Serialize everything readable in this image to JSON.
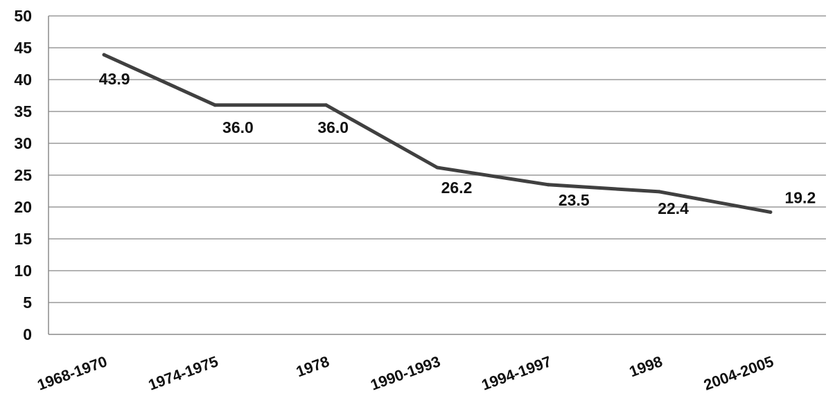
{
  "chart_data": {
    "type": "line",
    "title": "",
    "xlabel": "",
    "ylabel": "",
    "categories": [
      "1968-1970",
      "1974-1975",
      "1978",
      "1990-1993",
      "1994-1997",
      "1998",
      "2004-2005"
    ],
    "series": [
      {
        "values": [
          43.9,
          36.0,
          36.0,
          26.2,
          23.5,
          22.4,
          19.2
        ],
        "labels": [
          "43.9",
          "36.0",
          "36.0",
          "26.2",
          "23.5",
          "22.4",
          "19.2"
        ],
        "color": "#404040"
      }
    ],
    "ylim": [
      0,
      50
    ],
    "yticks": [
      0,
      5,
      10,
      15,
      20,
      25,
      30,
      35,
      40,
      45,
      50
    ],
    "grid": true,
    "legend": "none"
  }
}
